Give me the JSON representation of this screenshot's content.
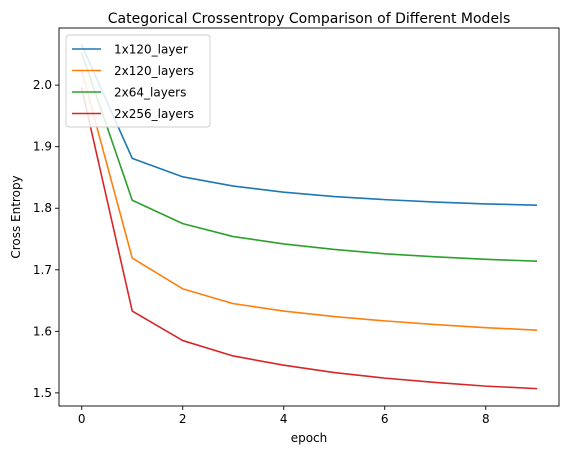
{
  "chart_data": {
    "type": "line",
    "title": "Categorical Crossentropy Comparison of Different Models",
    "xlabel": "epoch",
    "ylabel": "Cross Entropy",
    "xlim": [
      -0.45,
      9.45
    ],
    "ylim": [
      1.4787,
      2.0928
    ],
    "xticks": [
      0,
      2,
      4,
      6,
      8
    ],
    "xtick_labels": [
      "0",
      "2",
      "4",
      "6",
      "8"
    ],
    "yticks": [
      1.5,
      1.6,
      1.7,
      1.8,
      1.9,
      2.0
    ],
    "ytick_labels": [
      "1.5",
      "1.6",
      "1.7",
      "1.8",
      "1.9",
      "2.0"
    ],
    "grid": false,
    "legend_position": "top-left",
    "x": [
      0,
      1,
      2,
      3,
      4,
      5,
      6,
      7,
      8,
      9
    ],
    "series": [
      {
        "name": "1x120_layer",
        "color": "#1f77b4",
        "values": [
          2.065,
          1.881,
          1.851,
          1.836,
          1.826,
          1.819,
          1.814,
          1.81,
          1.807,
          1.805
        ]
      },
      {
        "name": "2x120_layers",
        "color": "#ff7f0e",
        "values": [
          2.023,
          1.719,
          1.669,
          1.645,
          1.633,
          1.624,
          1.617,
          1.611,
          1.606,
          1.602
        ]
      },
      {
        "name": "2x64_layers",
        "color": "#2ca02c",
        "values": [
          2.052,
          1.813,
          1.775,
          1.754,
          1.742,
          1.733,
          1.726,
          1.721,
          1.717,
          1.714
        ]
      },
      {
        "name": "2x256_layers",
        "color": "#d62728",
        "values": [
          1.995,
          1.633,
          1.585,
          1.56,
          1.545,
          1.533,
          1.524,
          1.517,
          1.511,
          1.507
        ]
      }
    ]
  }
}
